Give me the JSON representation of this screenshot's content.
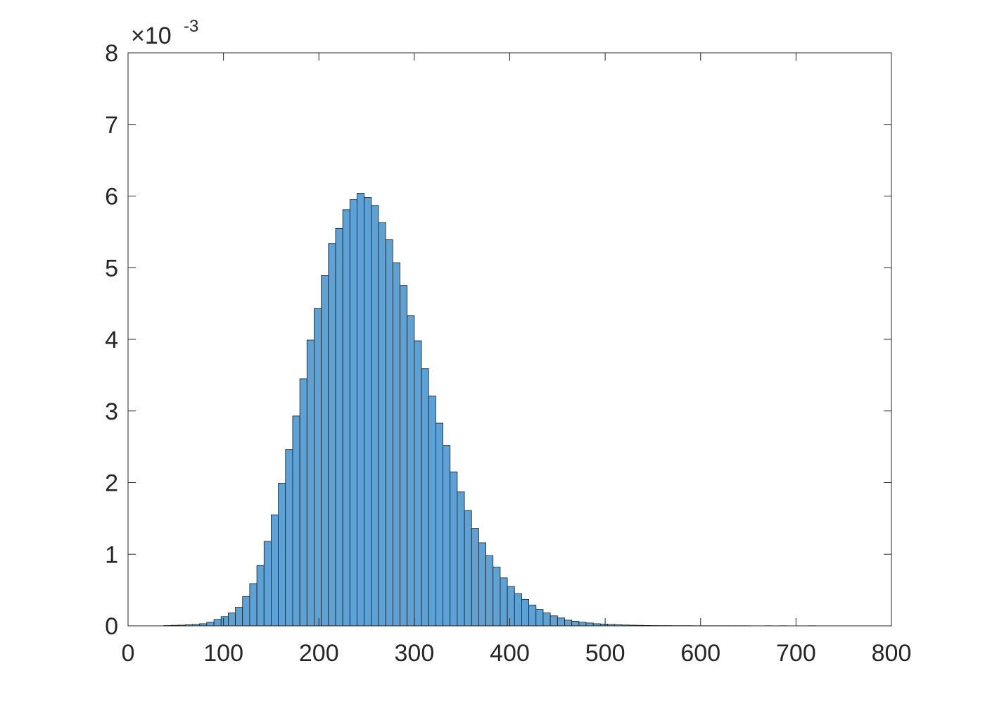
{
  "chart_data": {
    "type": "histogram",
    "y_multiplier": "×10",
    "y_exponent": "-3",
    "color": "#5ea1d5",
    "edge_color": "#1a1a1a",
    "xlim": [
      0,
      800
    ],
    "xticks": [
      0,
      100,
      200,
      300,
      400,
      500,
      600,
      700,
      800
    ],
    "ylim": [
      0,
      8
    ],
    "yticks": [
      0,
      1,
      2,
      3,
      4,
      5,
      6,
      7,
      8
    ],
    "grid": false,
    "box": true,
    "bins": [
      37.5,
      45,
      52.5,
      60,
      67.5,
      75,
      82.5,
      90,
      97.5,
      105,
      112.5,
      120,
      127.5,
      135,
      142.5,
      150,
      157.5,
      165,
      172.5,
      180,
      187.5,
      195,
      202.5,
      210,
      217.5,
      225,
      232.5,
      240,
      247.5,
      255,
      262.5,
      270,
      277.5,
      285,
      292.5,
      300,
      307.5,
      315,
      322.5,
      330,
      337.5,
      345,
      352.5,
      360,
      367.5,
      375,
      382.5,
      390,
      397.5,
      405,
      412.5,
      420,
      427.5,
      435,
      442.5,
      450,
      457.5,
      465,
      472.5,
      480,
      487.5,
      495,
      502.5,
      510,
      517.5,
      525,
      532.5,
      540,
      547.5,
      555,
      562.5,
      570,
      577.5,
      585,
      592.5,
      600,
      607.5,
      615,
      622.5,
      630,
      637.5,
      645,
      652.5,
      660,
      667.5,
      675,
      682.5,
      690,
      697.5,
      705,
      712.5,
      720
    ],
    "values": [
      0.005,
      0.008,
      0.01,
      0.015,
      0.02,
      0.03,
      0.05,
      0.09,
      0.13,
      0.18,
      0.26,
      0.41,
      0.59,
      0.84,
      1.18,
      1.55,
      1.99,
      2.46,
      2.93,
      3.45,
      3.99,
      4.43,
      4.89,
      5.34,
      5.55,
      5.81,
      5.95,
      6.04,
      5.98,
      5.87,
      5.63,
      5.39,
      5.07,
      4.75,
      4.33,
      3.98,
      3.59,
      3.21,
      2.83,
      2.52,
      2.15,
      1.87,
      1.61,
      1.36,
      1.16,
      0.98,
      0.82,
      0.67,
      0.55,
      0.45,
      0.37,
      0.29,
      0.23,
      0.18,
      0.14,
      0.11,
      0.08,
      0.065,
      0.05,
      0.04,
      0.03,
      0.025,
      0.02,
      0.015,
      0.012,
      0.01,
      0.008,
      0.006,
      0.005,
      0.004,
      0.004,
      0.003,
      0.003,
      0.003,
      0.002,
      0.002,
      0.002,
      0.002,
      0.002,
      0.002,
      0.002,
      0.002,
      0,
      0,
      0.002,
      0,
      0.002,
      0,
      0,
      0,
      0.002
    ]
  }
}
